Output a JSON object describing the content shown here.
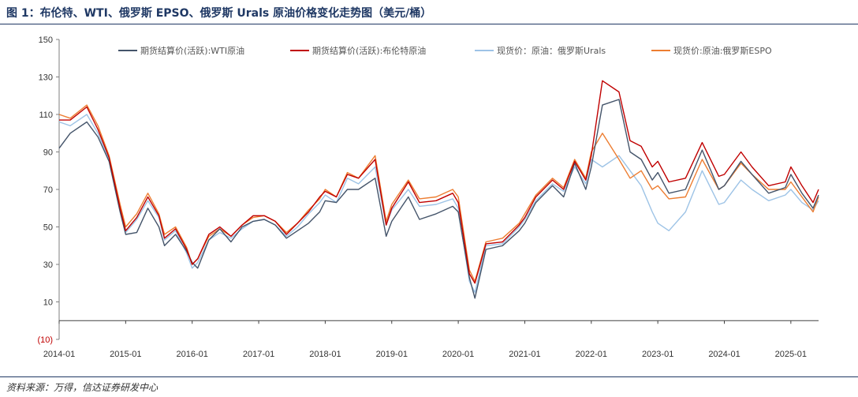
{
  "title": "图 1：布伦特、WTI、俄罗斯 EPSO、俄罗斯 Urals 原油价格变化走势图（美元/桶）",
  "source": "资料来源：万得，信达证券研发中心",
  "chart_data": {
    "type": "line",
    "title": "",
    "xlabel": "",
    "ylabel": "",
    "ylim": [
      -10,
      150
    ],
    "yticks": [
      150,
      130,
      110,
      90,
      70,
      50,
      30,
      10
    ],
    "yticks_negative": [
      {
        "value": -10,
        "label": "(10)"
      }
    ],
    "xticks": [
      "2014-01",
      "2015-01",
      "2016-01",
      "2017-01",
      "2018-01",
      "2019-01",
      "2020-01",
      "2021-01",
      "2022-01",
      "2023-01",
      "2024-01",
      "2025-01"
    ],
    "x_range": [
      "2014-01",
      "2025-06"
    ],
    "grid": false,
    "legend_position": "top",
    "series": [
      {
        "name": "期货结算价(活跃):WTI原油",
        "color": "#44546a",
        "points": [
          [
            "2014-01",
            92
          ],
          [
            "2014-03",
            100
          ],
          [
            "2014-06",
            106
          ],
          [
            "2014-08",
            98
          ],
          [
            "2014-10",
            85
          ],
          [
            "2014-12",
            58
          ],
          [
            "2015-01",
            46
          ],
          [
            "2015-03",
            47
          ],
          [
            "2015-05",
            60
          ],
          [
            "2015-07",
            50
          ],
          [
            "2015-08",
            40
          ],
          [
            "2015-10",
            46
          ],
          [
            "2015-12",
            37
          ],
          [
            "2016-01",
            31
          ],
          [
            "2016-02",
            28
          ],
          [
            "2016-04",
            43
          ],
          [
            "2016-06",
            49
          ],
          [
            "2016-08",
            42
          ],
          [
            "2016-10",
            50
          ],
          [
            "2016-12",
            53
          ],
          [
            "2017-02",
            54
          ],
          [
            "2017-04",
            51
          ],
          [
            "2017-06",
            44
          ],
          [
            "2017-08",
            48
          ],
          [
            "2017-10",
            52
          ],
          [
            "2017-12",
            58
          ],
          [
            "2018-01",
            64
          ],
          [
            "2018-03",
            63
          ],
          [
            "2018-05",
            70
          ],
          [
            "2018-07",
            70
          ],
          [
            "2018-10",
            76
          ],
          [
            "2018-12",
            45
          ],
          [
            "2019-01",
            53
          ],
          [
            "2019-04",
            66
          ],
          [
            "2019-06",
            54
          ],
          [
            "2019-09",
            57
          ],
          [
            "2019-12",
            61
          ],
          [
            "2020-01",
            58
          ],
          [
            "2020-03",
            23
          ],
          [
            "2020-04",
            12
          ],
          [
            "2020-06",
            38
          ],
          [
            "2020-09",
            40
          ],
          [
            "2020-12",
            48
          ],
          [
            "2021-01",
            52
          ],
          [
            "2021-03",
            63
          ],
          [
            "2021-06",
            72
          ],
          [
            "2021-08",
            66
          ],
          [
            "2021-10",
            84
          ],
          [
            "2021-12",
            70
          ],
          [
            "2022-01",
            82
          ],
          [
            "2022-03",
            115
          ],
          [
            "2022-06",
            118
          ],
          [
            "2022-08",
            90
          ],
          [
            "2022-10",
            86
          ],
          [
            "2022-12",
            75
          ],
          [
            "2023-01",
            79
          ],
          [
            "2023-03",
            68
          ],
          [
            "2023-06",
            70
          ],
          [
            "2023-09",
            91
          ],
          [
            "2023-12",
            70
          ],
          [
            "2024-01",
            72
          ],
          [
            "2024-04",
            85
          ],
          [
            "2024-06",
            78
          ],
          [
            "2024-09",
            68
          ],
          [
            "2024-12",
            71
          ],
          [
            "2025-01",
            78
          ],
          [
            "2025-03",
            68
          ],
          [
            "2025-05",
            60
          ],
          [
            "2025-06",
            67
          ]
        ]
      },
      {
        "name": "期货结算价(活跃):布伦特原油",
        "color": "#c00000",
        "points": [
          [
            "2014-01",
            107
          ],
          [
            "2014-03",
            107
          ],
          [
            "2014-06",
            114
          ],
          [
            "2014-08",
            102
          ],
          [
            "2014-10",
            87
          ],
          [
            "2014-12",
            60
          ],
          [
            "2015-01",
            48
          ],
          [
            "2015-03",
            55
          ],
          [
            "2015-05",
            66
          ],
          [
            "2015-07",
            56
          ],
          [
            "2015-08",
            44
          ],
          [
            "2015-10",
            49
          ],
          [
            "2015-12",
            38
          ],
          [
            "2016-01",
            30
          ],
          [
            "2016-02",
            33
          ],
          [
            "2016-04",
            46
          ],
          [
            "2016-06",
            50
          ],
          [
            "2016-08",
            45
          ],
          [
            "2016-10",
            51
          ],
          [
            "2016-12",
            56
          ],
          [
            "2017-02",
            56
          ],
          [
            "2017-04",
            53
          ],
          [
            "2017-06",
            46
          ],
          [
            "2017-08",
            52
          ],
          [
            "2017-10",
            58
          ],
          [
            "2017-12",
            66
          ],
          [
            "2018-01",
            69
          ],
          [
            "2018-03",
            66
          ],
          [
            "2018-05",
            78
          ],
          [
            "2018-07",
            76
          ],
          [
            "2018-10",
            86
          ],
          [
            "2018-12",
            51
          ],
          [
            "2019-01",
            60
          ],
          [
            "2019-04",
            74
          ],
          [
            "2019-06",
            63
          ],
          [
            "2019-09",
            64
          ],
          [
            "2019-12",
            68
          ],
          [
            "2020-01",
            63
          ],
          [
            "2020-03",
            25
          ],
          [
            "2020-04",
            20
          ],
          [
            "2020-06",
            41
          ],
          [
            "2020-09",
            42
          ],
          [
            "2020-12",
            51
          ],
          [
            "2021-01",
            55
          ],
          [
            "2021-03",
            66
          ],
          [
            "2021-06",
            75
          ],
          [
            "2021-08",
            70
          ],
          [
            "2021-10",
            85
          ],
          [
            "2021-12",
            75
          ],
          [
            "2022-01",
            88
          ],
          [
            "2022-03",
            128
          ],
          [
            "2022-06",
            122
          ],
          [
            "2022-08",
            96
          ],
          [
            "2022-10",
            93
          ],
          [
            "2022-12",
            82
          ],
          [
            "2023-01",
            85
          ],
          [
            "2023-03",
            74
          ],
          [
            "2023-06",
            76
          ],
          [
            "2023-09",
            95
          ],
          [
            "2023-12",
            77
          ],
          [
            "2024-01",
            78
          ],
          [
            "2024-04",
            90
          ],
          [
            "2024-06",
            82
          ],
          [
            "2024-09",
            72
          ],
          [
            "2024-12",
            74
          ],
          [
            "2025-01",
            82
          ],
          [
            "2025-03",
            72
          ],
          [
            "2025-05",
            63
          ],
          [
            "2025-06",
            70
          ]
        ]
      },
      {
        "name": "现货价：原油：俄罗斯Urals",
        "color": "#9dc3e6",
        "points": [
          [
            "2014-01",
            106
          ],
          [
            "2014-03",
            104
          ],
          [
            "2014-06",
            110
          ],
          [
            "2014-08",
            100
          ],
          [
            "2014-10",
            86
          ],
          [
            "2014-12",
            59
          ],
          [
            "2015-01",
            47
          ],
          [
            "2015-03",
            54
          ],
          [
            "2015-05",
            64
          ],
          [
            "2015-07",
            55
          ],
          [
            "2015-08",
            43
          ],
          [
            "2015-10",
            48
          ],
          [
            "2015-12",
            36
          ],
          [
            "2016-01",
            28
          ],
          [
            "2016-02",
            31
          ],
          [
            "2016-04",
            43
          ],
          [
            "2016-06",
            47
          ],
          [
            "2016-08",
            44
          ],
          [
            "2016-10",
            49
          ],
          [
            "2016-12",
            53
          ],
          [
            "2017-02",
            54
          ],
          [
            "2017-04",
            51
          ],
          [
            "2017-06",
            45
          ],
          [
            "2017-08",
            50
          ],
          [
            "2017-10",
            57
          ],
          [
            "2017-12",
            63
          ],
          [
            "2018-01",
            67
          ],
          [
            "2018-03",
            63
          ],
          [
            "2018-05",
            76
          ],
          [
            "2018-07",
            73
          ],
          [
            "2018-10",
            82
          ],
          [
            "2018-12",
            51
          ],
          [
            "2019-01",
            59
          ],
          [
            "2019-04",
            70
          ],
          [
            "2019-06",
            61
          ],
          [
            "2019-09",
            62
          ],
          [
            "2019-12",
            65
          ],
          [
            "2020-01",
            60
          ],
          [
            "2020-03",
            21
          ],
          [
            "2020-04",
            15
          ],
          [
            "2020-06",
            40
          ],
          [
            "2020-09",
            41
          ],
          [
            "2020-12",
            50
          ],
          [
            "2021-01",
            54
          ],
          [
            "2021-03",
            64
          ],
          [
            "2021-06",
            73
          ],
          [
            "2021-08",
            69
          ],
          [
            "2021-10",
            82
          ],
          [
            "2021-12",
            73
          ],
          [
            "2022-01",
            86
          ],
          [
            "2022-03",
            82
          ],
          [
            "2022-06",
            88
          ],
          [
            "2022-08",
            80
          ],
          [
            "2022-10",
            72
          ],
          [
            "2022-12",
            58
          ],
          [
            "2023-01",
            52
          ],
          [
            "2023-03",
            48
          ],
          [
            "2023-06",
            58
          ],
          [
            "2023-09",
            80
          ],
          [
            "2023-12",
            62
          ],
          [
            "2024-01",
            63
          ],
          [
            "2024-04",
            75
          ],
          [
            "2024-06",
            70
          ],
          [
            "2024-09",
            64
          ],
          [
            "2024-12",
            67
          ],
          [
            "2025-01",
            70
          ],
          [
            "2025-03",
            63
          ],
          [
            "2025-05",
            59
          ],
          [
            "2025-06",
            64
          ]
        ]
      },
      {
        "name": "现货价:原油:俄罗斯ESPO",
        "color": "#ed7d31",
        "points": [
          [
            "2014-01",
            110
          ],
          [
            "2014-03",
            108
          ],
          [
            "2014-06",
            115
          ],
          [
            "2014-08",
            104
          ],
          [
            "2014-10",
            88
          ],
          [
            "2014-12",
            62
          ],
          [
            "2015-01",
            50
          ],
          [
            "2015-03",
            57
          ],
          [
            "2015-05",
            68
          ],
          [
            "2015-07",
            57
          ],
          [
            "2015-08",
            46
          ],
          [
            "2015-10",
            50
          ],
          [
            "2015-12",
            39
          ],
          [
            "2016-01",
            30
          ],
          [
            "2016-02",
            33
          ],
          [
            "2016-04",
            45
          ],
          [
            "2016-06",
            49
          ],
          [
            "2016-08",
            45
          ],
          [
            "2016-10",
            51
          ],
          [
            "2016-12",
            55
          ],
          [
            "2017-02",
            56
          ],
          [
            "2017-04",
            53
          ],
          [
            "2017-06",
            47
          ],
          [
            "2017-08",
            52
          ],
          [
            "2017-10",
            59
          ],
          [
            "2017-12",
            65
          ],
          [
            "2018-01",
            70
          ],
          [
            "2018-03",
            66
          ],
          [
            "2018-05",
            79
          ],
          [
            "2018-07",
            76
          ],
          [
            "2018-10",
            88
          ],
          [
            "2018-12",
            53
          ],
          [
            "2019-01",
            62
          ],
          [
            "2019-04",
            75
          ],
          [
            "2019-06",
            65
          ],
          [
            "2019-09",
            66
          ],
          [
            "2019-12",
            70
          ],
          [
            "2020-01",
            66
          ],
          [
            "2020-03",
            27
          ],
          [
            "2020-04",
            21
          ],
          [
            "2020-06",
            42
          ],
          [
            "2020-09",
            44
          ],
          [
            "2020-12",
            52
          ],
          [
            "2021-01",
            57
          ],
          [
            "2021-03",
            67
          ],
          [
            "2021-06",
            76
          ],
          [
            "2021-08",
            71
          ],
          [
            "2021-10",
            86
          ],
          [
            "2021-12",
            76
          ],
          [
            "2022-01",
            90
          ],
          [
            "2022-03",
            100
          ],
          [
            "2022-06",
            86
          ],
          [
            "2022-08",
            76
          ],
          [
            "2022-10",
            80
          ],
          [
            "2022-12",
            70
          ],
          [
            "2023-01",
            72
          ],
          [
            "2023-03",
            65
          ],
          [
            "2023-06",
            66
          ],
          [
            "2023-09",
            86
          ],
          [
            "2023-12",
            70
          ],
          [
            "2024-01",
            72
          ],
          [
            "2024-04",
            84
          ],
          [
            "2024-06",
            78
          ],
          [
            "2024-09",
            70
          ],
          [
            "2024-12",
            70
          ],
          [
            "2025-01",
            74
          ],
          [
            "2025-03",
            66
          ],
          [
            "2025-05",
            58
          ],
          [
            "2025-06",
            66
          ]
        ]
      }
    ]
  }
}
